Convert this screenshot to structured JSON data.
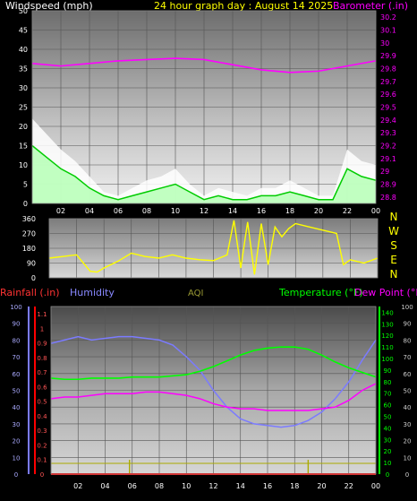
{
  "panel1": {
    "left_label": "Windspeed (mph)",
    "title": "24 hour graph day : August 14 2025",
    "right_label": "Barometer (.in)",
    "left_ticks": [
      "0",
      "5",
      "10",
      "15",
      "20",
      "25",
      "30",
      "35",
      "40",
      "45",
      "50"
    ],
    "right_ticks": [
      "28.8",
      "28.9",
      "29",
      "29.1",
      "29.2",
      "29.3",
      "29.4",
      "29.5",
      "29.6",
      "29.7",
      "29.8",
      "29.9",
      "30",
      "30.1",
      "30.2"
    ],
    "x_ticks": [
      "02",
      "04",
      "06",
      "08",
      "10",
      "12",
      "14",
      "16",
      "18",
      "20",
      "22",
      "00"
    ]
  },
  "panel2": {
    "left_ticks": [
      "0",
      "90",
      "180",
      "270",
      "360"
    ],
    "compass": [
      "N",
      "W",
      "S",
      "E",
      "N"
    ]
  },
  "panel3": {
    "label_rain": "Rainfall (.in)",
    "label_humidity": "Humidity",
    "label_aqi": "AQI",
    "label_temp": "Temperature (°F)",
    "label_dew": "Dew Point (°F)",
    "humidity_ticks": [
      "0",
      "10",
      "20",
      "30",
      "40",
      "50",
      "60",
      "70",
      "80",
      "90",
      "100"
    ],
    "rain_ticks": [
      "0",
      "0.1",
      "0.2",
      "0.3",
      "0.4",
      "0.5",
      "0.6",
      "0.7",
      "0.8",
      "0.9",
      "1",
      "1.1"
    ],
    "temp_ticks": [
      "0",
      "10",
      "20",
      "30",
      "40",
      "50",
      "60",
      "70",
      "80",
      "90",
      "100",
      "110",
      "120",
      "130",
      "140"
    ],
    "right2_ticks": [
      "0",
      "10",
      "20",
      "30",
      "40",
      "50",
      "60",
      "70",
      "80",
      "90",
      "100"
    ],
    "x_ticks": [
      "02",
      "04",
      "06",
      "08",
      "10",
      "12",
      "14",
      "16",
      "18",
      "20",
      "22",
      "00"
    ]
  },
  "colors": {
    "barometer": "#ff00ff",
    "gust": "#ffffff",
    "wind": "#00cc00",
    "wind_light": "#b6ffb6",
    "direction": "#ffff00",
    "humidity": "#7b7bff",
    "temperature": "#00ff00",
    "dewpoint": "#ff00ff",
    "rain": "#ff0000",
    "aqi": "#aaaa00"
  },
  "chart_data": [
    {
      "type": "line",
      "x_unit": "hour",
      "xlim": [
        0,
        24
      ],
      "series": [
        {
          "name": "Windspeed (mph)",
          "axis": "left",
          "x": [
            0,
            1,
            2,
            3,
            4,
            5,
            6,
            7,
            8,
            9,
            10,
            11,
            12,
            13,
            14,
            15,
            16,
            17,
            18,
            19,
            20,
            21,
            22,
            23,
            24
          ],
          "values": [
            15,
            12,
            9,
            7,
            4,
            2,
            1,
            2,
            3,
            4,
            5,
            3,
            1,
            2,
            1,
            1,
            2,
            2,
            3,
            2,
            1,
            1,
            9,
            7,
            6
          ]
        },
        {
          "name": "Gust",
          "axis": "left",
          "x": [
            0,
            1,
            2,
            3,
            4,
            5,
            6,
            7,
            8,
            9,
            10,
            11,
            12,
            13,
            14,
            15,
            16,
            17,
            18,
            19,
            20,
            21,
            22,
            23,
            24
          ],
          "values": [
            22,
            18,
            14,
            11,
            7,
            3,
            2,
            4,
            6,
            7,
            9,
            5,
            2,
            4,
            3,
            2,
            4,
            4,
            6,
            4,
            2,
            2,
            14,
            11,
            10
          ]
        },
        {
          "name": "Barometer (.in)",
          "axis": "right",
          "ylim": [
            28.75,
            30.25
          ],
          "x": [
            0,
            2,
            4,
            6,
            8,
            10,
            12,
            14,
            16,
            18,
            20,
            22,
            24
          ],
          "values": [
            29.84,
            29.82,
            29.84,
            29.86,
            29.87,
            29.88,
            29.87,
            29.83,
            29.79,
            29.77,
            29.78,
            29.82,
            29.86
          ]
        }
      ],
      "ylim": [
        0,
        50
      ]
    },
    {
      "type": "line",
      "x_unit": "hour",
      "xlim": [
        0,
        24
      ],
      "ylim": [
        0,
        360
      ],
      "series": [
        {
          "name": "Wind direction",
          "x": [
            0,
            1,
            2,
            2.5,
            3,
            3.5,
            4,
            5,
            6,
            7,
            8,
            9,
            10,
            11,
            12,
            13,
            13.5,
            14,
            14.5,
            15,
            15.5,
            16,
            16.5,
            17,
            17.5,
            18,
            19,
            20,
            21,
            21.5,
            22,
            23,
            24
          ],
          "values": [
            120,
            130,
            140,
            90,
            40,
            35,
            60,
            100,
            150,
            130,
            120,
            140,
            120,
            110,
            105,
            140,
            350,
            60,
            340,
            20,
            330,
            80,
            310,
            250,
            300,
            330,
            310,
            290,
            270,
            80,
            110,
            90,
            120
          ]
        }
      ]
    },
    {
      "type": "line",
      "x_unit": "hour",
      "xlim": [
        0,
        24
      ],
      "series": [
        {
          "name": "Humidity",
          "axis": "humidity",
          "ylim": [
            0,
            100
          ],
          "x": [
            0,
            1,
            2,
            3,
            4,
            5,
            6,
            7,
            8,
            9,
            10,
            11,
            12,
            13,
            14,
            15,
            16,
            17,
            18,
            19,
            20,
            21,
            22,
            23,
            24
          ],
          "values": [
            78,
            80,
            82,
            80,
            81,
            82,
            82,
            81,
            80,
            77,
            70,
            62,
            50,
            40,
            33,
            30,
            29,
            28,
            29,
            32,
            37,
            45,
            55,
            68,
            80
          ]
        },
        {
          "name": "Temperature (°F)",
          "axis": "temp",
          "ylim": [
            0,
            145
          ],
          "x": [
            0,
            1,
            2,
            3,
            4,
            5,
            6,
            7,
            8,
            9,
            10,
            11,
            12,
            13,
            14,
            15,
            16,
            17,
            18,
            19,
            20,
            21,
            22,
            23,
            24
          ],
          "values": [
            83,
            82,
            82,
            83,
            83,
            83,
            84,
            84,
            84,
            85,
            86,
            89,
            93,
            98,
            103,
            107,
            109,
            110,
            110,
            108,
            103,
            97,
            92,
            88,
            84
          ]
        },
        {
          "name": "Dew Point (°F)",
          "axis": "right2",
          "ylim": [
            0,
            100
          ],
          "x": [
            0,
            1,
            2,
            3,
            4,
            5,
            6,
            7,
            8,
            9,
            10,
            11,
            12,
            13,
            14,
            15,
            16,
            17,
            18,
            19,
            20,
            21,
            22,
            23,
            24
          ],
          "values": [
            45,
            46,
            46,
            47,
            48,
            48,
            48,
            49,
            49,
            48,
            47,
            45,
            42,
            40,
            39,
            39,
            38,
            38,
            38,
            38,
            39,
            40,
            44,
            50,
            54
          ]
        },
        {
          "name": "Rainfall (.in)",
          "axis": "rain",
          "ylim": [
            0,
            1.15
          ],
          "x": [
            0,
            24
          ],
          "values": [
            0,
            0
          ]
        }
      ]
    }
  ]
}
